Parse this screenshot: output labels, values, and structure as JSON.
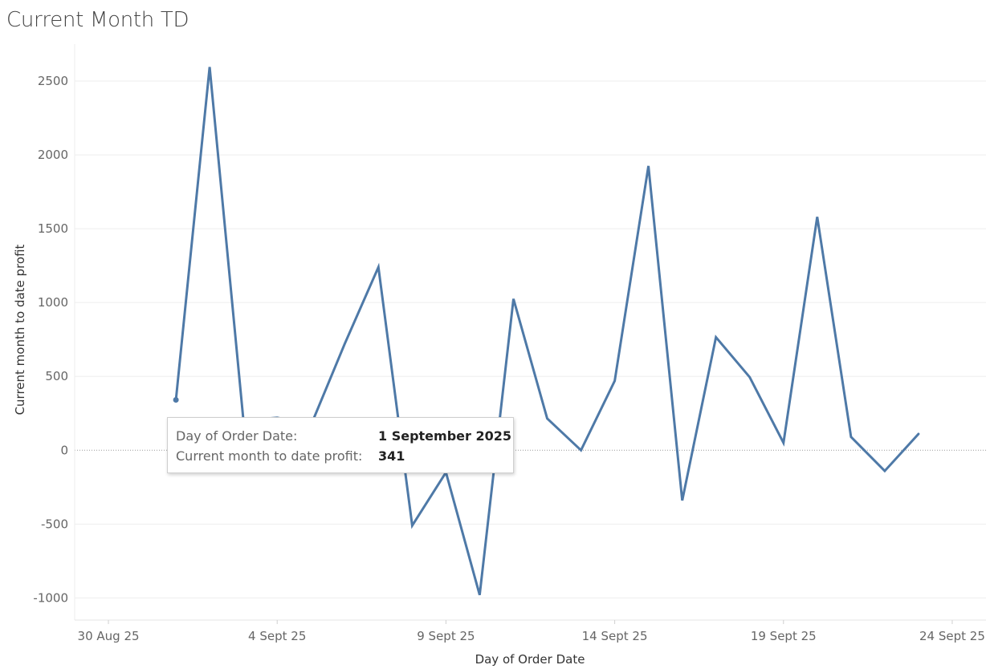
{
  "page": {
    "title": "Current Month TD"
  },
  "tooltip": {
    "rows": [
      {
        "label": "Day of Order Date:",
        "value": "1 September 2025"
      },
      {
        "label": "Current month to date profit:",
        "value": "341"
      }
    ]
  },
  "chart_data": {
    "type": "line",
    "title": "Current Month TD",
    "xlabel": "Day of Order Date",
    "ylabel": "Current month to date profit",
    "x_ticks": [
      "30 Aug 25",
      "4 Sept 25",
      "9 Sept 25",
      "14 Sept 25",
      "19 Sept 25",
      "24 Sept 25"
    ],
    "y_ticks": [
      2500,
      2000,
      1500,
      1000,
      500,
      0,
      -500,
      -1000
    ],
    "ylim": [
      -1150,
      2750
    ],
    "xlim": [
      "2025-08-29",
      "2025-09-25"
    ],
    "grid": true,
    "zero_line": "dotted",
    "series": [
      {
        "color": "#4e79a7",
        "x": [
          "2025-09-01",
          "2025-09-02",
          "2025-09-03",
          "2025-09-04",
          "2025-09-05",
          "2025-09-06",
          "2025-09-07",
          "2025-09-08",
          "2025-09-09",
          "2025-09-10",
          "2025-09-11",
          "2025-09-12",
          "2025-09-13",
          "2025-09-14",
          "2025-09-15",
          "2025-09-16",
          "2025-09-17",
          "2025-09-18",
          "2025-09-19",
          "2025-09-20",
          "2025-09-21",
          "2025-09-22",
          "2025-09-23"
        ],
        "values": [
          341,
          2595,
          200,
          220,
          170,
          720,
          1240,
          -510,
          -150,
          -980,
          1025,
          215,
          0,
          470,
          1925,
          -340,
          765,
          495,
          50,
          1580,
          90,
          -140,
          110
        ]
      }
    ],
    "highlight_point_index": 0
  }
}
